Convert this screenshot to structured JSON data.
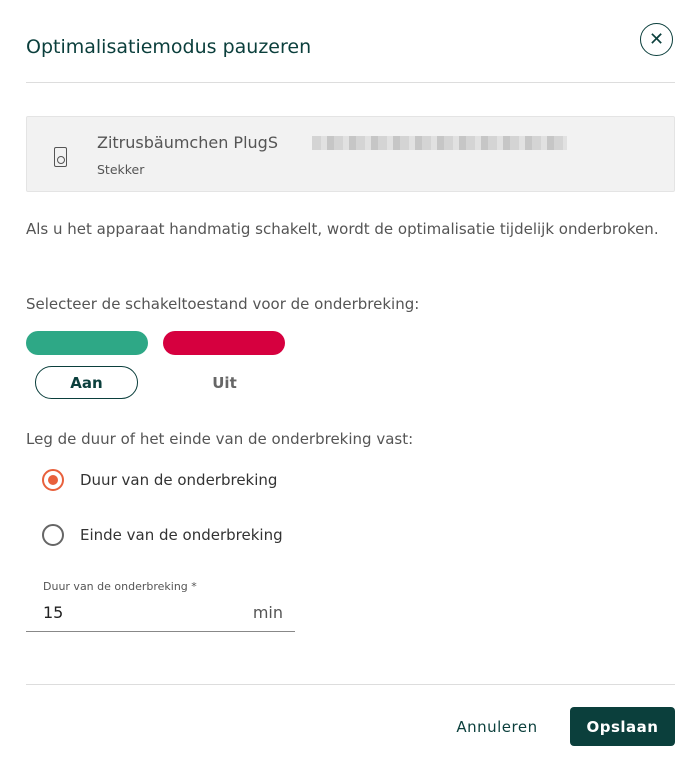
{
  "dialog": {
    "title": "Optimalisatiemodus pauzeren",
    "close_icon": "close-circle-icon"
  },
  "device": {
    "name": "Zitrusbäumchen PlugS",
    "type": "Stekker",
    "icon": "plug-icon"
  },
  "info_text": "Als u het apparaat handmatig schakelt, wordt de optimalisatie tijdelijk onderbroken.",
  "switch": {
    "prompt": "Selecteer de schakeltoestand voor de onderbreking:",
    "on_label": "Aan",
    "off_label": "Uit",
    "selected": "Aan",
    "on_color": "#2ea886",
    "off_color": "#d6003f"
  },
  "duration": {
    "prompt": "Leg de duur of het einde van de onderbreking vast:",
    "options": [
      "Duur van de onderbreking",
      "Einde van de onderbreking"
    ],
    "selected": "Duur van de onderbreking",
    "field_label": "Duur van de onderbreking *",
    "value": "15",
    "unit": "min"
  },
  "footer": {
    "cancel": "Annuleren",
    "save": "Opslaan"
  }
}
